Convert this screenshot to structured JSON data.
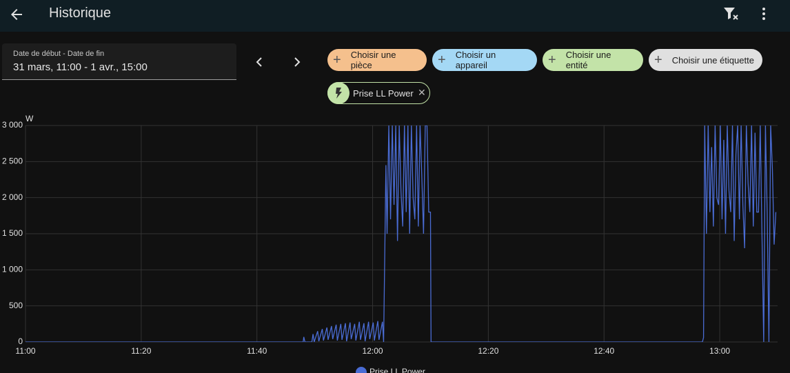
{
  "header": {
    "title": "Historique"
  },
  "date_picker": {
    "label": "Date de début - Date de fin",
    "value": "31 mars, 11:00 - 1 avr., 15:00"
  },
  "filters": {
    "chips": [
      "Choisir une pièce",
      "Choisir un appareil",
      "Choisir une entité",
      "Choisir une étiquette"
    ],
    "selected": [
      "Prise LL Power"
    ]
  },
  "chart_data": {
    "type": "line",
    "y_unit": "W",
    "x": [
      660,
      708,
      708.1,
      708.3,
      709.5,
      709.7,
      709.9,
      710.5,
      710.7,
      711.3,
      711.5,
      712.1,
      712.3,
      712.9,
      713.1,
      713.7,
      713.9,
      714.5,
      714.7,
      715.3,
      715.5,
      716.1,
      716.3,
      716.9,
      717.1,
      717.7,
      717.9,
      718.5,
      718.7,
      719.3,
      719.5,
      720.1,
      720.3,
      720.9,
      721.1,
      721.7,
      721.9,
      722.3,
      722.5,
      722.8,
      723.1,
      723.4,
      723.7,
      724.0,
      724.3,
      724.6,
      724.9,
      725.2,
      725.5,
      725.8,
      726.1,
      726.4,
      726.7,
      727.0,
      727.3,
      727.6,
      727.9,
      728.2,
      728.5,
      728.8,
      729.1,
      729.4,
      729.7,
      730.0,
      730.1,
      777,
      777.2,
      777.4,
      777.7,
      778.0,
      778.3,
      778.6,
      778.9,
      779.2,
      779.5,
      779.8,
      780.1,
      780.4,
      780.7,
      781.0,
      781.3,
      781.6,
      781.9,
      782.2,
      782.5,
      782.8,
      783.1,
      783.4,
      783.7,
      784.0,
      784.3,
      784.6,
      784.9,
      785.2,
      785.5,
      785.8,
      786.1,
      786.4,
      786.7,
      787.0,
      787.3,
      787.6,
      787.9,
      788.2,
      788.5,
      788.8,
      789.1,
      789.4,
      789.7
    ],
    "series": [
      {
        "name": "Prise LL Power",
        "color": "#4a6cd4",
        "values": [
          0,
          0,
          70,
          0,
          0,
          110,
          0,
          150,
          10,
          180,
          20,
          200,
          30,
          220,
          40,
          240,
          20,
          250,
          30,
          260,
          10,
          270,
          40,
          250,
          20,
          280,
          30,
          260,
          10,
          280,
          40,
          270,
          20,
          290,
          30,
          280,
          0,
          2450,
          1500,
          3000,
          1700,
          3000,
          1900,
          3000,
          1400,
          3000,
          2100,
          1600,
          3000,
          1800,
          3000,
          1500,
          3000,
          2000,
          1700,
          3000,
          1600,
          3000,
          2300,
          1500,
          3000,
          3000,
          1800,
          1800,
          0,
          0,
          60,
          3000,
          1500,
          3000,
          1800,
          2700,
          1600,
          3000,
          2000,
          1900,
          3000,
          1700,
          2800,
          1500,
          3000,
          2100,
          1800,
          3000,
          1400,
          2600,
          3000,
          1700,
          3000,
          1900,
          1300,
          3000,
          2200,
          1800,
          3000,
          1600,
          2900,
          1800,
          1800,
          3000,
          1500,
          0,
          3000,
          1800,
          0,
          3000,
          2400,
          1350,
          1800
        ]
      }
    ],
    "xlim": [
      660,
      790
    ],
    "xticks": [
      {
        "value": 660,
        "label": "11:00"
      },
      {
        "value": 680,
        "label": "11:20"
      },
      {
        "value": 700,
        "label": "11:40"
      },
      {
        "value": 720,
        "label": "12:00"
      },
      {
        "value": 740,
        "label": "12:20"
      },
      {
        "value": 760,
        "label": "12:40"
      },
      {
        "value": 780,
        "label": "13:00"
      }
    ],
    "ylim": [
      0,
      3000
    ],
    "yticks": [
      0,
      500,
      {
        "value": 1000,
        "label": "1 000"
      },
      {
        "value": 1500,
        "label": "1 500"
      },
      {
        "value": 2000,
        "label": "2 000"
      },
      {
        "value": 2500,
        "label": "2 500"
      },
      {
        "value": 3000,
        "label": "3 000"
      }
    ],
    "grid": true
  }
}
